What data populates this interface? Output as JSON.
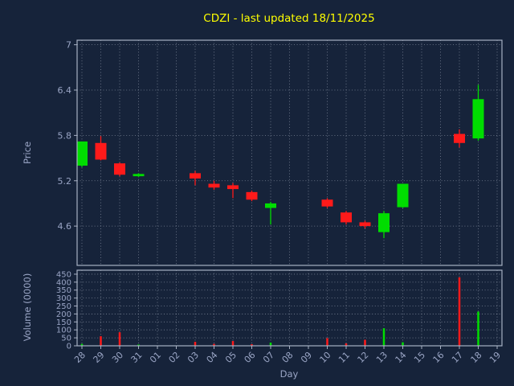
{
  "colors": {
    "background": "#16233a",
    "grid": "#cdd4e2",
    "tick_label": "#9aa5c5",
    "title": "#ffff00",
    "spine": "#a7b0c3",
    "up": "#00dd00",
    "down": "#ff1a1a"
  },
  "chart_data": {
    "type": "candlestick+volume",
    "title": "CDZI - last updated 18/11/2025",
    "xlabel": "Day",
    "price_ylabel": "Price",
    "volume_ylabel": "Volume (0000)",
    "grid": true,
    "legend": false,
    "x_ticks": [
      "28",
      "29",
      "30",
      "31",
      "01",
      "02",
      "03",
      "04",
      "05",
      "06",
      "07",
      "08",
      "09",
      "10",
      "11",
      "12",
      "13",
      "14",
      "15",
      "16",
      "17",
      "18",
      "19"
    ],
    "price_yticks": [
      7,
      6.4,
      5.8,
      5.2,
      4.6
    ],
    "price_ylim": [
      4.08,
      7.06
    ],
    "volume_yticks": [
      450,
      400,
      350,
      300,
      250,
      200,
      150,
      100,
      50,
      0
    ],
    "volume_ylim": [
      0,
      475
    ],
    "candles": [
      {
        "day": "28",
        "open": 5.4,
        "high": 5.72,
        "low": 5.38,
        "close": 5.72,
        "volume": 12
      },
      {
        "day": "29",
        "open": 5.7,
        "high": 5.79,
        "low": 5.47,
        "close": 5.48,
        "volume": 60
      },
      {
        "day": "30",
        "open": 5.43,
        "high": 5.44,
        "low": 5.26,
        "close": 5.28,
        "volume": 85
      },
      {
        "day": "31",
        "open": 5.26,
        "high": 5.3,
        "low": 5.25,
        "close": 5.29,
        "volume": 8
      },
      {
        "day": "03",
        "open": 5.3,
        "high": 5.33,
        "low": 5.14,
        "close": 5.23,
        "volume": 25
      },
      {
        "day": "04",
        "open": 5.16,
        "high": 5.2,
        "low": 5.08,
        "close": 5.11,
        "volume": 12
      },
      {
        "day": "05",
        "open": 5.14,
        "high": 5.17,
        "low": 4.97,
        "close": 5.09,
        "volume": 30
      },
      {
        "day": "06",
        "open": 5.05,
        "high": 5.07,
        "low": 4.93,
        "close": 4.95,
        "volume": 10
      },
      {
        "day": "07",
        "open": 4.84,
        "high": 4.92,
        "low": 4.62,
        "close": 4.9,
        "volume": 20
      },
      {
        "day": "10",
        "open": 4.95,
        "high": 4.97,
        "low": 4.84,
        "close": 4.86,
        "volume": 48
      },
      {
        "day": "11",
        "open": 4.78,
        "high": 4.8,
        "low": 4.62,
        "close": 4.65,
        "volume": 15
      },
      {
        "day": "12",
        "open": 4.65,
        "high": 4.67,
        "low": 4.57,
        "close": 4.6,
        "volume": 38
      },
      {
        "day": "13",
        "open": 4.52,
        "high": 4.8,
        "low": 4.44,
        "close": 4.77,
        "volume": 110
      },
      {
        "day": "14",
        "open": 4.85,
        "high": 5.16,
        "low": 4.84,
        "close": 5.16,
        "volume": 22
      },
      {
        "day": "17",
        "open": 5.82,
        "high": 5.88,
        "low": 5.64,
        "close": 5.7,
        "volume": 430
      },
      {
        "day": "18",
        "open": 5.76,
        "high": 6.47,
        "low": 5.73,
        "close": 6.28,
        "volume": 215
      }
    ]
  }
}
